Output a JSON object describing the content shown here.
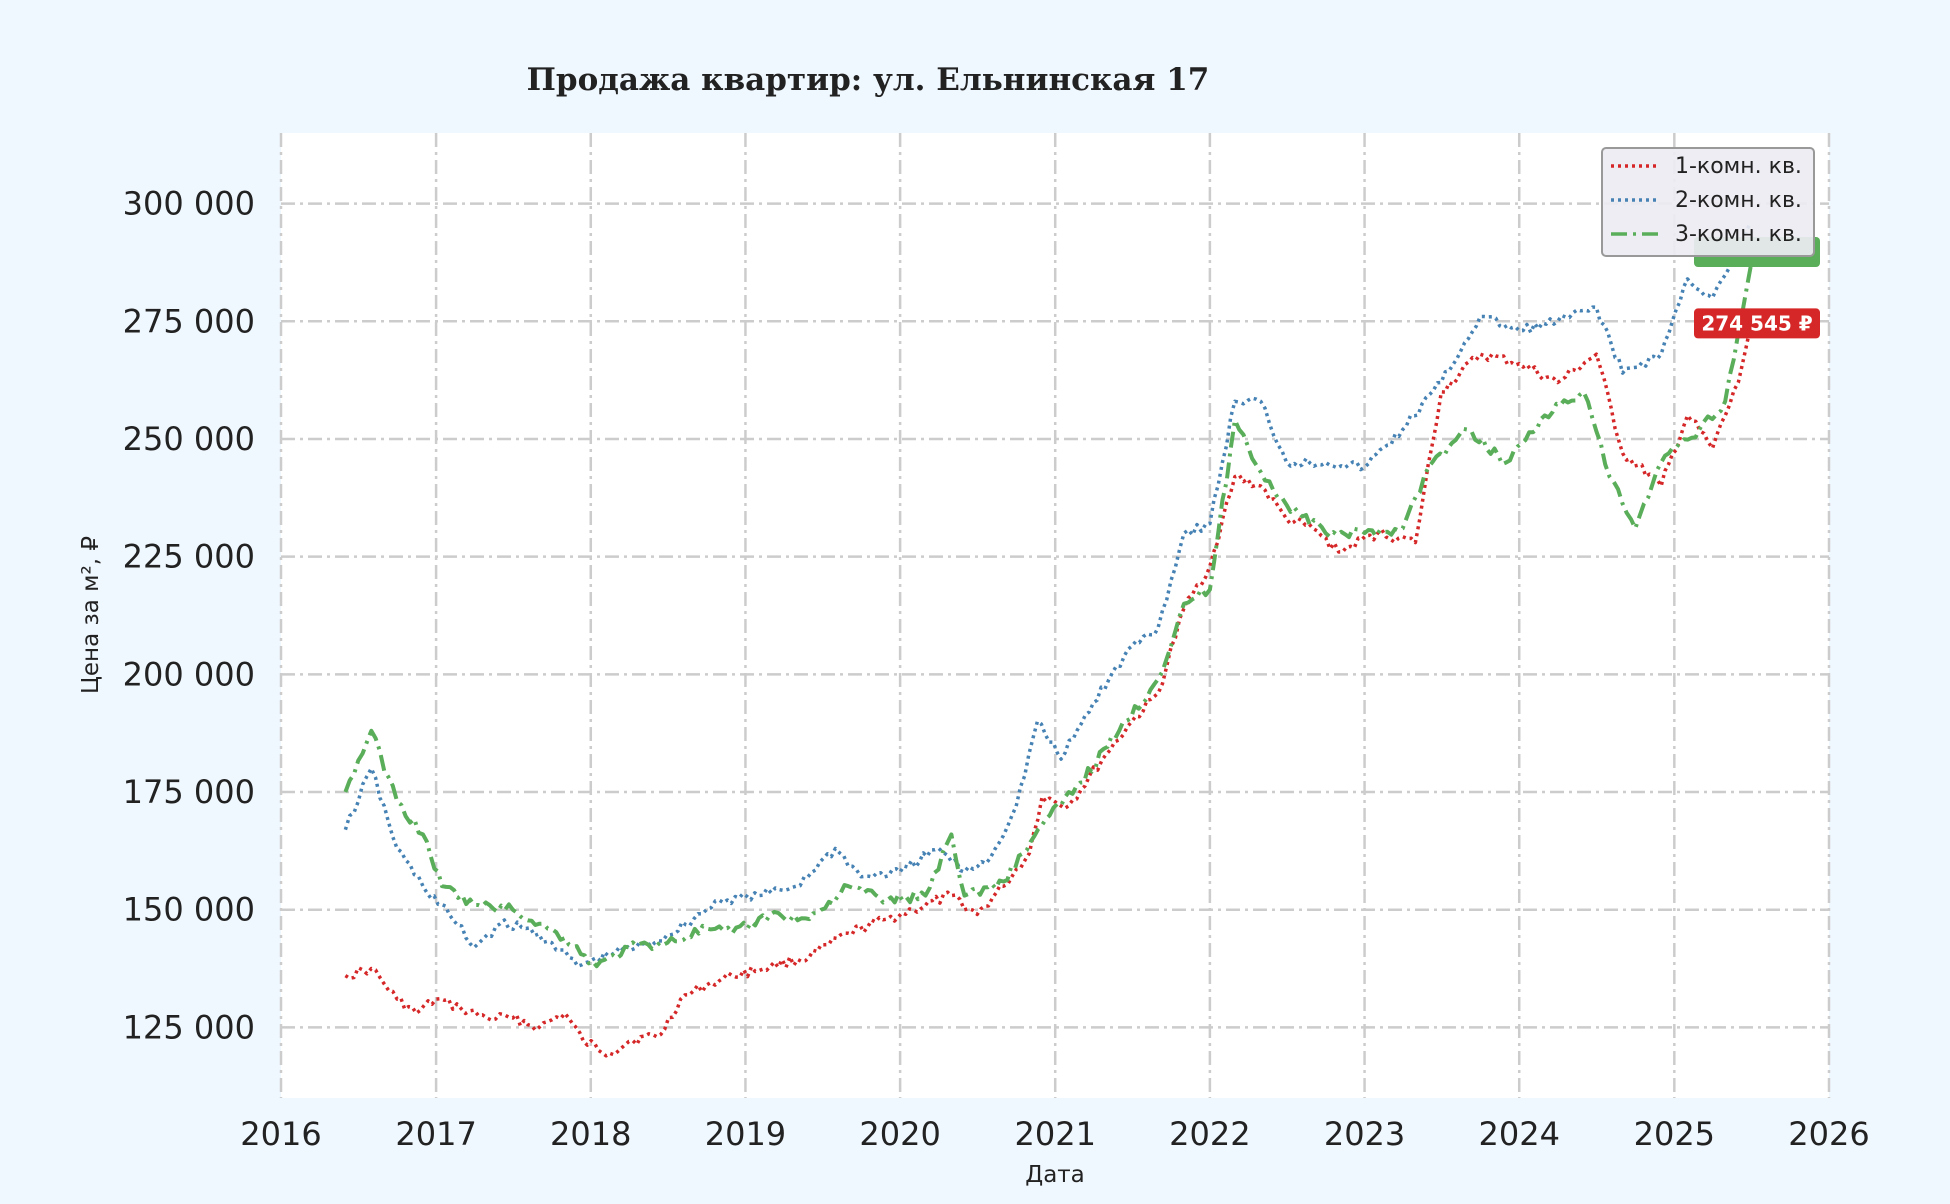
{
  "chart_data": {
    "type": "line",
    "title": "Продажа квартир: ул. Ельнинская 17",
    "xlabel": "Дата",
    "ylabel": "Цена за м², ₽",
    "xlim": [
      "2016-01-01",
      "2026-01-01"
    ],
    "ylim": [
      110000,
      315000
    ],
    "x_ticks": [
      "2016",
      "2017",
      "2018",
      "2019",
      "2020",
      "2021",
      "2022",
      "2023",
      "2024",
      "2025",
      "2026"
    ],
    "y_ticks": [
      125000,
      150000,
      175000,
      200000,
      225000,
      250000,
      275000,
      300000
    ],
    "y_tick_labels": [
      "125 000",
      "150 000",
      "175 000",
      "200 000",
      "225 000",
      "250 000",
      "275 000",
      "300 000"
    ],
    "grid": true,
    "legend_position": "top-right",
    "series": [
      {
        "name": "1-комн. кв.",
        "color": "#d62728",
        "line_style": "dotted",
        "points": [
          [
            "2016-06-01",
            136000
          ],
          [
            "2016-08-01",
            137500
          ],
          [
            "2016-10-01",
            131000
          ],
          [
            "2016-11-15",
            128000
          ],
          [
            "2017-01-01",
            131000
          ],
          [
            "2017-03-01",
            129000
          ],
          [
            "2017-05-01",
            127000
          ],
          [
            "2017-07-01",
            127000
          ],
          [
            "2017-09-01",
            125000
          ],
          [
            "2017-11-01",
            128000
          ],
          [
            "2017-12-15",
            122000
          ],
          [
            "2018-02-15",
            119500
          ],
          [
            "2018-04-01",
            122000
          ],
          [
            "2018-06-15",
            123500
          ],
          [
            "2018-08-01",
            131000
          ],
          [
            "2018-10-01",
            134000
          ],
          [
            "2018-12-01",
            136000
          ],
          [
            "2019-03-01",
            138000
          ],
          [
            "2019-06-01",
            140000
          ],
          [
            "2019-09-01",
            145000
          ],
          [
            "2019-12-01",
            148000
          ],
          [
            "2020-02-01",
            150000
          ],
          [
            "2020-05-01",
            153000
          ],
          [
            "2020-07-01",
            149000
          ],
          [
            "2020-09-01",
            155000
          ],
          [
            "2020-11-01",
            162000
          ],
          [
            "2020-12-01",
            174000
          ],
          [
            "2021-02-01",
            172000
          ],
          [
            "2021-05-01",
            183000
          ],
          [
            "2021-07-01",
            190000
          ],
          [
            "2021-09-01",
            196000
          ],
          [
            "2021-11-01",
            214000
          ],
          [
            "2022-01-01",
            223000
          ],
          [
            "2022-03-01",
            242000
          ],
          [
            "2022-05-01",
            240000
          ],
          [
            "2022-07-01",
            233000
          ],
          [
            "2022-09-01",
            231000
          ],
          [
            "2022-11-01",
            226000
          ],
          [
            "2023-02-01",
            230000
          ],
          [
            "2023-05-01",
            228000
          ],
          [
            "2023-07-01",
            260000
          ],
          [
            "2023-10-01",
            268000
          ],
          [
            "2024-01-01",
            266000
          ],
          [
            "2024-04-01",
            262000
          ],
          [
            "2024-07-01",
            268000
          ],
          [
            "2024-09-01",
            247000
          ],
          [
            "2024-12-01",
            240000
          ],
          [
            "2025-02-01",
            255000
          ],
          [
            "2025-04-01",
            248000
          ],
          [
            "2025-06-01",
            262000
          ],
          [
            "2025-07-01",
            274545
          ]
        ]
      },
      {
        "name": "2-комн. кв.",
        "color": "#4682b4",
        "line_style": "dotted",
        "points": [
          [
            "2016-06-01",
            167000
          ],
          [
            "2016-08-01",
            180000
          ],
          [
            "2016-10-01",
            163000
          ],
          [
            "2016-12-01",
            155000
          ],
          [
            "2017-02-01",
            149000
          ],
          [
            "2017-04-01",
            142000
          ],
          [
            "2017-06-01",
            147000
          ],
          [
            "2017-08-01",
            146000
          ],
          [
            "2017-10-01",
            143000
          ],
          [
            "2017-12-01",
            138000
          ],
          [
            "2018-03-01",
            141000
          ],
          [
            "2018-06-01",
            143000
          ],
          [
            "2018-09-01",
            148000
          ],
          [
            "2018-11-01",
            152000
          ],
          [
            "2019-02-01",
            153000
          ],
          [
            "2019-05-01",
            155000
          ],
          [
            "2019-08-01",
            163000
          ],
          [
            "2019-10-01",
            157000
          ],
          [
            "2020-01-01",
            158000
          ],
          [
            "2020-04-01",
            163000
          ],
          [
            "2020-06-01",
            158000
          ],
          [
            "2020-08-01",
            161000
          ],
          [
            "2020-10-01",
            172000
          ],
          [
            "2020-11-20",
            190000
          ],
          [
            "2021-01-15",
            182000
          ],
          [
            "2021-04-01",
            194000
          ],
          [
            "2021-07-01",
            206000
          ],
          [
            "2021-09-01",
            210000
          ],
          [
            "2021-11-01",
            230000
          ],
          [
            "2022-01-01",
            232000
          ],
          [
            "2022-03-01",
            258000
          ],
          [
            "2022-05-01",
            258000
          ],
          [
            "2022-07-01",
            245000
          ],
          [
            "2022-10-01",
            245000
          ],
          [
            "2023-01-01",
            244000
          ],
          [
            "2023-04-01",
            252000
          ],
          [
            "2023-07-01",
            262000
          ],
          [
            "2023-10-01",
            276000
          ],
          [
            "2024-01-01",
            273000
          ],
          [
            "2024-04-01",
            275000
          ],
          [
            "2024-07-01",
            278000
          ],
          [
            "2024-09-01",
            264000
          ],
          [
            "2024-12-01",
            268000
          ],
          [
            "2025-02-01",
            284000
          ],
          [
            "2025-04-01",
            280000
          ],
          [
            "2025-06-01",
            289000
          ],
          [
            "2025-07-01",
            296000
          ]
        ]
      },
      {
        "name": "3-комн. кв.",
        "color": "#5aae5a",
        "line_style": "dashdot",
        "points": [
          [
            "2016-06-01",
            175000
          ],
          [
            "2016-08-01",
            188000
          ],
          [
            "2016-10-01",
            173000
          ],
          [
            "2016-12-01",
            166000
          ],
          [
            "2017-01-15",
            155000
          ],
          [
            "2017-04-01",
            151000
          ],
          [
            "2017-07-01",
            150000
          ],
          [
            "2017-09-01",
            147000
          ],
          [
            "2017-11-01",
            144000
          ],
          [
            "2018-01-15",
            138000
          ],
          [
            "2018-04-01",
            142000
          ],
          [
            "2018-07-01",
            143000
          ],
          [
            "2018-10-01",
            146000
          ],
          [
            "2018-12-01",
            145000
          ],
          [
            "2019-03-01",
            149000
          ],
          [
            "2019-06-01",
            148000
          ],
          [
            "2019-09-01",
            155000
          ],
          [
            "2019-12-01",
            152000
          ],
          [
            "2020-03-01",
            153000
          ],
          [
            "2020-05-01",
            166000
          ],
          [
            "2020-06-01",
            153000
          ],
          [
            "2020-09-01",
            156000
          ],
          [
            "2020-12-01",
            168000
          ],
          [
            "2021-03-01",
            177000
          ],
          [
            "2021-06-01",
            188000
          ],
          [
            "2021-09-01",
            199000
          ],
          [
            "2021-11-01",
            215000
          ],
          [
            "2022-01-01",
            218000
          ],
          [
            "2022-03-01",
            254000
          ],
          [
            "2022-05-01",
            243000
          ],
          [
            "2022-07-01",
            236000
          ],
          [
            "2022-10-01",
            230000
          ],
          [
            "2023-01-01",
            230000
          ],
          [
            "2023-04-01",
            231000
          ],
          [
            "2023-06-01",
            244000
          ],
          [
            "2023-09-01",
            252000
          ],
          [
            "2023-12-01",
            245000
          ],
          [
            "2024-03-01",
            255000
          ],
          [
            "2024-06-01",
            260000
          ],
          [
            "2024-08-01",
            242000
          ],
          [
            "2024-10-01",
            231000
          ],
          [
            "2024-12-01",
            245000
          ],
          [
            "2025-03-01",
            252000
          ],
          [
            "2025-05-01",
            258000
          ],
          [
            "2025-07-01",
            287000
          ]
        ]
      }
    ],
    "annotations": [
      {
        "label": "274 545 ₽",
        "series": "1-комн. кв.",
        "value": 274545
      }
    ]
  }
}
